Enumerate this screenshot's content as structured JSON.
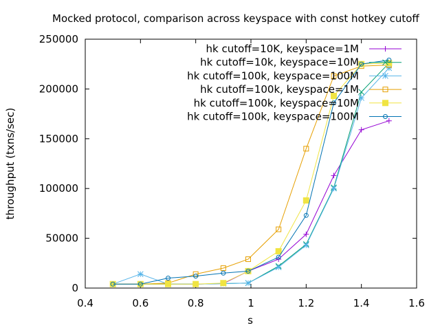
{
  "chart_data": {
    "type": "line",
    "title": "Mocked protocol, comparison across keyspace with const hotkey cutoff",
    "xlabel": "s",
    "ylabel": "throughput (txns/sec)",
    "xlim": [
      0.4,
      1.6
    ],
    "ylim": [
      0,
      250000
    ],
    "xticks": [
      0.4,
      0.6,
      0.8,
      1.0,
      1.2,
      1.4,
      1.6
    ],
    "xtick_labels": [
      "0.4",
      "0.6",
      "0.8",
      "1",
      "1.2",
      "1.4",
      "1.6"
    ],
    "yticks": [
      0,
      50000,
      100000,
      150000,
      200000,
      250000
    ],
    "ytick_labels": [
      "0",
      "50000",
      "100000",
      "150000",
      "200000",
      "250000"
    ],
    "grid": false,
    "legend_position": "top-right",
    "x": [
      0.5,
      0.6,
      0.7,
      0.8,
      0.9,
      0.99,
      1.1,
      1.2,
      1.3,
      1.4,
      1.5
    ],
    "series": [
      {
        "name": "hk cutoff=10K, keyspace=1M",
        "color": "#9400d3",
        "marker": "plus",
        "values": [
          4000,
          4000,
          4000,
          4000,
          4500,
          17000,
          29000,
          54000,
          113000,
          159000,
          168000
        ]
      },
      {
        "name": "hk cutoff=10k, keyspace=10M",
        "color": "#009e73",
        "marker": "cross",
        "values": [
          4000,
          4000,
          4000,
          4000,
          4500,
          5000,
          22000,
          44000,
          101000,
          197000,
          226000
        ]
      },
      {
        "name": "hk cutoff=100k, keyspace=100M",
        "color": "#56b4e9",
        "marker": "star",
        "values": [
          4000,
          14000,
          4000,
          4000,
          4500,
          5000,
          21000,
          43000,
          100000,
          191000,
          221000
        ]
      },
      {
        "name": "hk cutoff=100k, keyspace=1M",
        "color": "#e69f00",
        "marker": "square-open",
        "values": [
          4000,
          4000,
          5000,
          14000,
          20000,
          29000,
          59000,
          140000,
          213000,
          223000,
          224000
        ]
      },
      {
        "name": "hk cutoff=100k, keyspace=10M",
        "color": "#f0e442",
        "marker": "square-filled",
        "values": [
          4000,
          4000,
          4000,
          4000,
          5000,
          17000,
          37000,
          88000,
          193000,
          225000,
          226000
        ]
      },
      {
        "name": "hk cutoff=100k, keyspace=100M",
        "color": "#0072b2",
        "marker": "circle-open",
        "values": [
          4000,
          4000,
          10000,
          12000,
          15000,
          17000,
          31000,
          73000,
          186000,
          225000,
          229000
        ]
      }
    ]
  }
}
